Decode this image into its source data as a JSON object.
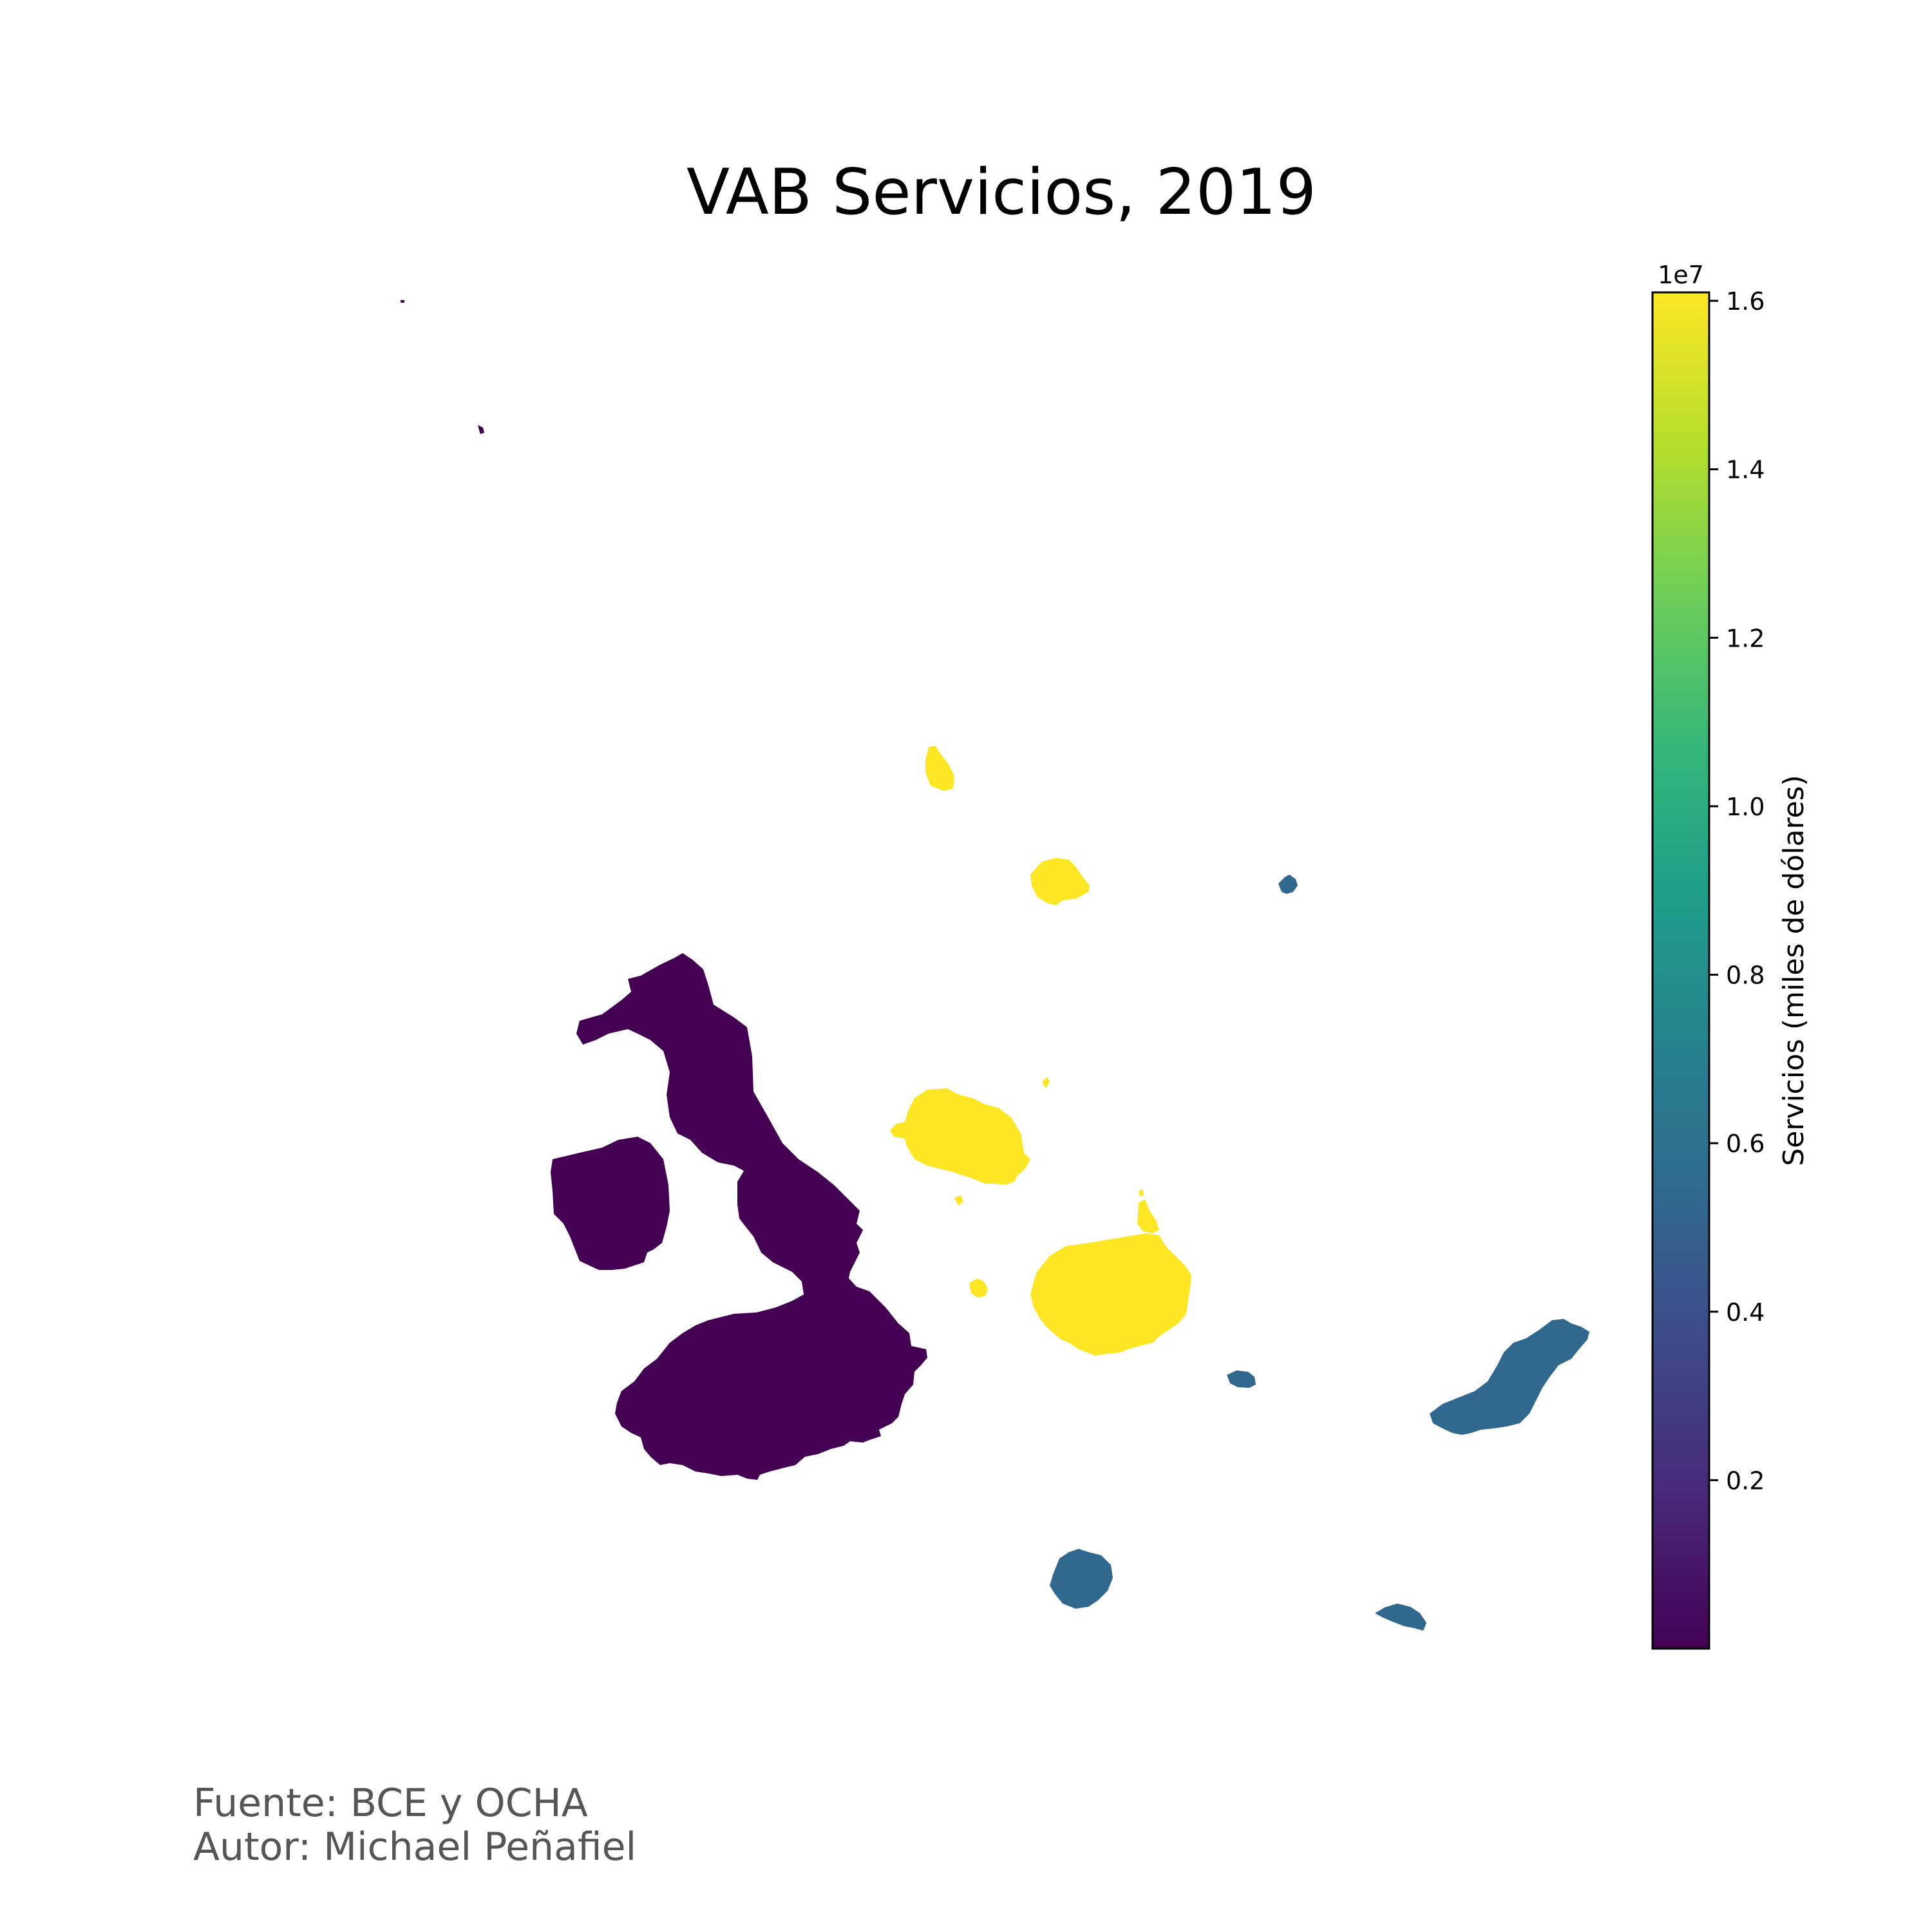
{
  "title": "VAB Servicios, 2019",
  "colorbar": {
    "label": "Servicios (miles de dólares)",
    "exponent": "1e7",
    "min": 0.0,
    "max": 1.61,
    "ticks": [
      {
        "value": 0.2,
        "label": "0.2"
      },
      {
        "value": 0.4,
        "label": "0.4"
      },
      {
        "value": 0.6,
        "label": "0.6"
      },
      {
        "value": 0.8,
        "label": "0.8"
      },
      {
        "value": 1.0,
        "label": "1.0"
      },
      {
        "value": 1.2,
        "label": "1.2"
      },
      {
        "value": 1.4,
        "label": "1.4"
      },
      {
        "value": 1.6,
        "label": "1.6"
      }
    ],
    "colormap": [
      "#440154",
      "#482878",
      "#3e4989",
      "#31688e",
      "#26828e",
      "#1f9e89",
      "#35b779",
      "#6ece58",
      "#b5de2b",
      "#fde725"
    ]
  },
  "legend_colors": {
    "isabela_low": "#440154",
    "san_cristobal_mid": "#31688e",
    "santa_cruz_high": "#fde725"
  },
  "footer": {
    "source": "Fuente: BCE y OCHA",
    "author": "Autor: Michael Peñafiel"
  }
}
